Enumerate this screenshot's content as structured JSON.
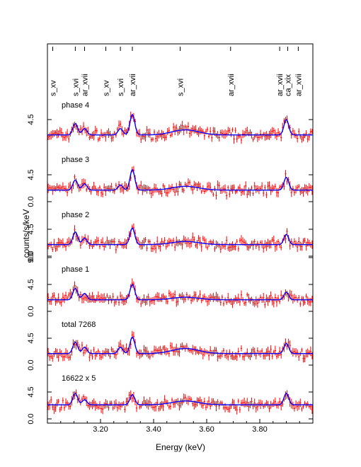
{
  "chart_data": {
    "type": "line",
    "xlabel": "Energy (keV)",
    "ylabel": "counts/s/keV",
    "xlim": [
      3.0,
      4.0
    ],
    "x_ticks": [
      "3.20",
      "3.40",
      "3.60",
      "3.80"
    ],
    "x_tick_values": [
      3.2,
      3.4,
      3.6,
      3.8
    ],
    "line_labels": [
      {
        "label": "s_xv",
        "energy": 3.02
      },
      {
        "label": "s_xvi",
        "energy": 3.105
      },
      {
        "label": "ar_xvii",
        "energy": 3.14
      },
      {
        "label": "s_xv",
        "energy": 3.22
      },
      {
        "label": "s_xvi",
        "energy": 3.275
      },
      {
        "label": "ar_xvii",
        "energy": 3.32
      },
      {
        "label": "s_xvi",
        "energy": 3.5
      },
      {
        "label": "ar_xvii",
        "energy": 3.69
      },
      {
        "label": "ar_xvii",
        "energy": 3.875
      },
      {
        "label": "ca_xix",
        "energy": 3.905
      },
      {
        "label": "ar_xvii",
        "energy": 3.945
      }
    ],
    "panels": [
      {
        "name": "phase 4",
        "yticks": [
          "4.5"
        ],
        "continuum": 0.35,
        "lines": [
          {
            "e": 3.105,
            "a": 0.9
          },
          {
            "e": 3.14,
            "a": 0.5
          },
          {
            "e": 3.275,
            "a": 0.5
          },
          {
            "e": 3.32,
            "a": 1.6
          },
          {
            "e": 3.9,
            "a": 1.2
          }
        ],
        "bump": 0.4
      },
      {
        "name": "phase 3",
        "yticks": [
          "0.0",
          "4.5"
        ],
        "continuum": 0.35,
        "lines": [
          {
            "e": 3.105,
            "a": 0.8
          },
          {
            "e": 3.14,
            "a": 0.5
          },
          {
            "e": 3.275,
            "a": 0.4
          },
          {
            "e": 3.32,
            "a": 1.6
          },
          {
            "e": 3.9,
            "a": 1.0
          }
        ],
        "bump": 0.3
      },
      {
        "name": "phase 2",
        "yticks": [
          "0.0",
          "4.5"
        ],
        "continuum": 0.35,
        "lines": [
          {
            "e": 3.105,
            "a": 1.0
          },
          {
            "e": 3.14,
            "a": 0.5
          },
          {
            "e": 3.32,
            "a": 1.3
          },
          {
            "e": 3.9,
            "a": 0.8
          }
        ],
        "bump": 0.25
      },
      {
        "name": "phase 1",
        "yticks": [
          "0.0",
          "4.5",
          "9.0"
        ],
        "continuum": 0.35,
        "lines": [
          {
            "e": 3.105,
            "a": 0.9
          },
          {
            "e": 3.14,
            "a": 0.5
          },
          {
            "e": 3.32,
            "a": 1.2
          },
          {
            "e": 3.9,
            "a": 0.6
          }
        ],
        "bump": 0.2
      },
      {
        "name": "total 7268",
        "yticks": [
          "0.0",
          "4.5"
        ],
        "continuum": 0.35,
        "lines": [
          {
            "e": 3.105,
            "a": 0.9
          },
          {
            "e": 3.14,
            "a": 0.5
          },
          {
            "e": 3.275,
            "a": 0.5
          },
          {
            "e": 3.32,
            "a": 1.3
          },
          {
            "e": 3.9,
            "a": 0.8
          }
        ],
        "bump": 0.4
      },
      {
        "name": "16622 x 5",
        "yticks": [
          "0.0",
          "4.5"
        ],
        "continuum": 0.55,
        "lines": [
          {
            "e": 3.105,
            "a": 0.9
          },
          {
            "e": 3.14,
            "a": 0.4
          },
          {
            "e": 3.32,
            "a": 0.8
          },
          {
            "e": 3.9,
            "a": 0.9
          }
        ],
        "bump": 0.3
      }
    ],
    "panel_ytick_bottom": [
      "0.0",
      "4.5"
    ],
    "colors": {
      "data": "#ff0000",
      "model": "#0000ff",
      "axes": "#000000"
    }
  }
}
